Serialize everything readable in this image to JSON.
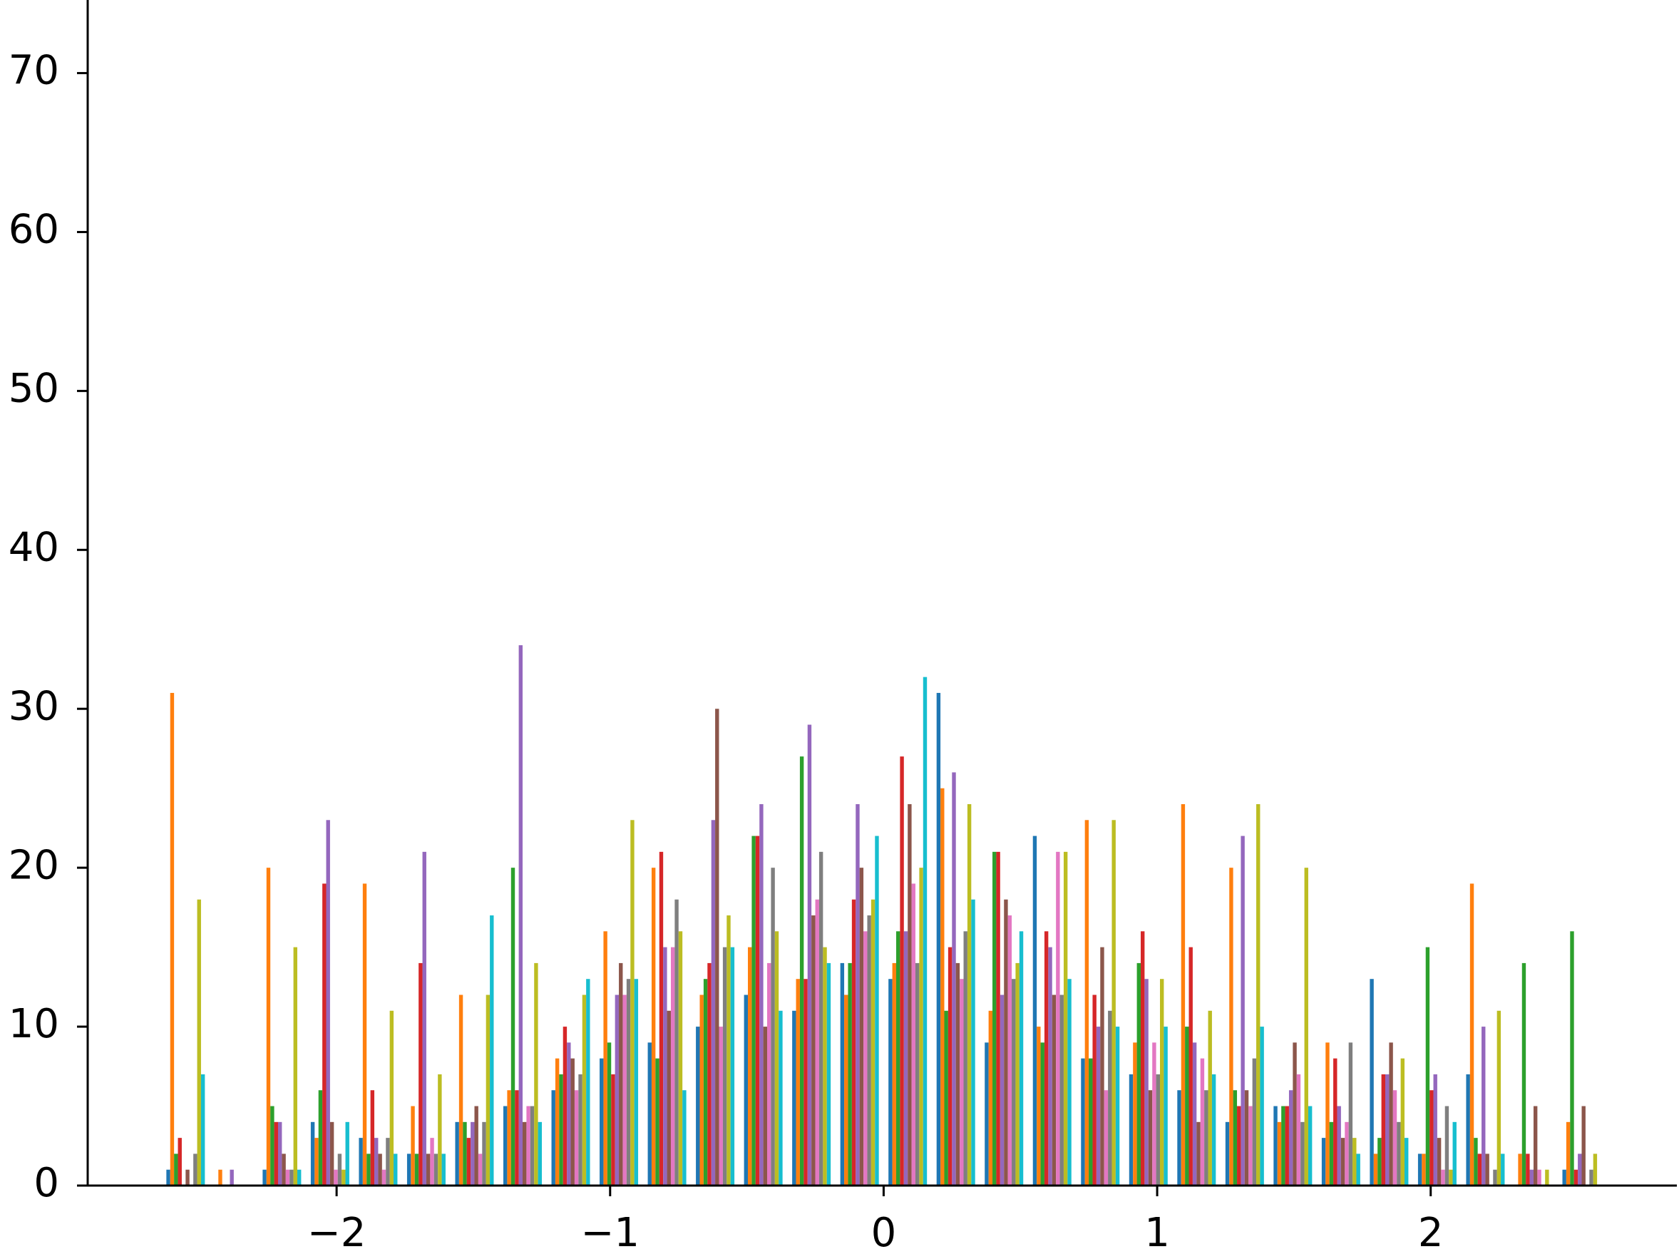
{
  "chart_data": {
    "type": "histogram",
    "bins": [
      -2.64,
      -2.464,
      -2.288,
      -2.112,
      -1.936,
      -1.76,
      -1.584,
      -1.408,
      -1.232,
      -1.056,
      -0.88,
      -0.704,
      -0.528,
      -0.352,
      -0.176,
      0,
      0.176,
      0.352,
      0.528,
      0.704,
      0.88,
      1.056,
      1.232,
      1.408,
      1.584,
      1.76,
      1.936,
      2.112,
      2.288,
      2.464,
      2.64
    ],
    "series": [
      {
        "color": "#1f77b4",
        "values": [
          1,
          0,
          1,
          4,
          3,
          2,
          4,
          5,
          6,
          8,
          9,
          10,
          12,
          11,
          14,
          13,
          31,
          9,
          22,
          8,
          7,
          6,
          4,
          5,
          3,
          13,
          2,
          7,
          0,
          1
        ]
      },
      {
        "color": "#ff7f0e",
        "values": [
          31,
          1,
          20,
          3,
          19,
          5,
          12,
          6,
          8,
          16,
          20,
          12,
          15,
          13,
          12,
          14,
          25,
          11,
          10,
          23,
          9,
          24,
          20,
          4,
          9,
          2,
          2,
          19,
          2,
          4
        ]
      },
      {
        "color": "#2ca02c",
        "values": [
          2,
          0,
          5,
          6,
          2,
          2,
          4,
          20,
          7,
          9,
          8,
          13,
          22,
          27,
          14,
          16,
          11,
          21,
          9,
          8,
          14,
          10,
          6,
          5,
          4,
          3,
          15,
          3,
          14,
          16
        ]
      },
      {
        "color": "#d62728",
        "values": [
          3,
          0,
          4,
          19,
          6,
          14,
          3,
          6,
          10,
          7,
          21,
          14,
          22,
          13,
          18,
          27,
          15,
          21,
          16,
          12,
          16,
          15,
          5,
          5,
          8,
          7,
          6,
          2,
          2,
          1
        ]
      },
      {
        "color": "#9467bd",
        "values": [
          0,
          1,
          4,
          23,
          3,
          21,
          4,
          34,
          9,
          12,
          15,
          23,
          24,
          29,
          24,
          16,
          26,
          12,
          15,
          10,
          13,
          9,
          22,
          6,
          5,
          7,
          7,
          10,
          1,
          2
        ]
      },
      {
        "color": "#8c564b",
        "values": [
          1,
          0,
          2,
          4,
          2,
          2,
          5,
          4,
          8,
          14,
          11,
          30,
          10,
          17,
          20,
          24,
          14,
          18,
          12,
          15,
          6,
          4,
          6,
          9,
          3,
          9,
          3,
          2,
          5,
          5
        ]
      },
      {
        "color": "#e377c2",
        "values": [
          0,
          0,
          1,
          1,
          1,
          3,
          2,
          5,
          6,
          12,
          15,
          10,
          14,
          18,
          16,
          19,
          13,
          17,
          21,
          6,
          9,
          8,
          5,
          7,
          4,
          6,
          1,
          0,
          1,
          0
        ]
      },
      {
        "color": "#7f7f7f",
        "values": [
          2,
          0,
          1,
          2,
          3,
          2,
          4,
          5,
          7,
          13,
          18,
          15,
          20,
          21,
          17,
          14,
          16,
          13,
          12,
          11,
          7,
          6,
          8,
          4,
          9,
          4,
          5,
          1,
          0,
          1
        ]
      },
      {
        "color": "#bcbd22",
        "values": [
          18,
          0,
          15,
          1,
          11,
          7,
          12,
          14,
          12,
          23,
          16,
          17,
          16,
          15,
          18,
          20,
          24,
          14,
          21,
          23,
          13,
          11,
          24,
          20,
          3,
          8,
          1,
          11,
          1,
          2
        ]
      },
      {
        "color": "#17becf",
        "values": [
          7,
          0,
          1,
          4,
          2,
          2,
          17,
          4,
          13,
          13,
          6,
          15,
          11,
          14,
          22,
          32,
          18,
          16,
          13,
          10,
          10,
          7,
          10,
          5,
          2,
          3,
          4,
          2,
          0,
          0
        ]
      }
    ],
    "xlim": [
      -2.91,
      2.9
    ],
    "xticks": [
      {
        "value": -2,
        "label": "−2"
      },
      {
        "value": -1,
        "label": "−1"
      },
      0,
      1,
      2
    ],
    "ylim": [
      0,
      74.6
    ],
    "yticks": [
      0,
      10,
      20,
      30,
      40,
      50,
      60,
      70
    ]
  }
}
